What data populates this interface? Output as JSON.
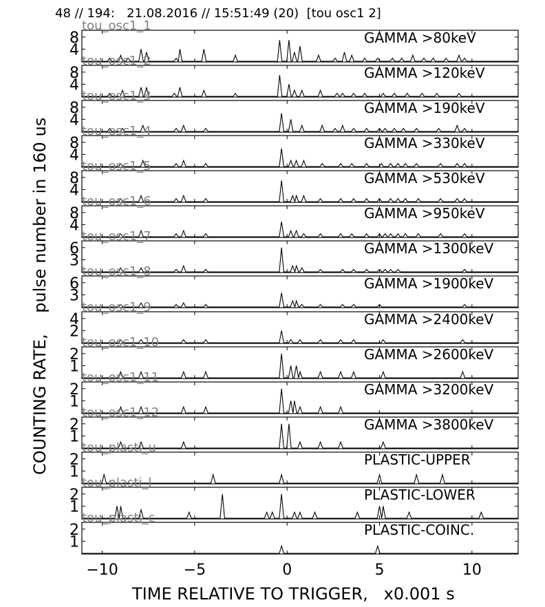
{
  "header": "48 // 194:   21.08.2016 // 15:51:49 (20)  [tou osc1 2]",
  "chart_data": {
    "type": "line",
    "layout": "stacked panels, shared x axis",
    "xlabel": "TIME RELATIVE TO TRIGGER,   x0.001 s",
    "ylabel": "COUNTING RATE,    pulse number in 160 us",
    "xlim": [
      -11.1,
      12.5
    ],
    "xticks": [
      -10,
      -5,
      0,
      5,
      10
    ],
    "xtick_labels": [
      "−10",
      "−5",
      "0",
      "5",
      "10"
    ],
    "grid": false,
    "panels": [
      {
        "channel": "tou_osc1_1",
        "title": "GAMMA >80keV",
        "ylim": [
          0,
          10
        ],
        "yticks": [
          4,
          8
        ],
        "peaks": [
          [
            -9.6,
            1
          ],
          [
            -9.0,
            2
          ],
          [
            -8.6,
            1
          ],
          [
            -7.9,
            4
          ],
          [
            -7.6,
            3
          ],
          [
            -6.0,
            1
          ],
          [
            -5.8,
            4
          ],
          [
            -4.5,
            4
          ],
          [
            -2.8,
            2
          ],
          [
            -0.4,
            7
          ],
          [
            0.1,
            7
          ],
          [
            0.4,
            3
          ],
          [
            0.7,
            5
          ],
          [
            1.7,
            2
          ],
          [
            2.6,
            1
          ],
          [
            3.1,
            3
          ],
          [
            3.5,
            2
          ],
          [
            4.2,
            1
          ],
          [
            4.9,
            1
          ],
          [
            5.7,
            1
          ],
          [
            6.2,
            1
          ],
          [
            6.8,
            2
          ],
          [
            7.4,
            1
          ],
          [
            7.9,
            1
          ],
          [
            8.6,
            1
          ],
          [
            9.3,
            2
          ],
          [
            9.6,
            1
          ]
        ]
      },
      {
        "channel": "tou_osc1_2",
        "title": "GAMMA >120keV",
        "ylim": [
          0,
          10
        ],
        "yticks": [
          4,
          8
        ],
        "peaks": [
          [
            -9.6,
            1
          ],
          [
            -8.9,
            2
          ],
          [
            -7.9,
            3
          ],
          [
            -7.6,
            3
          ],
          [
            -6.1,
            1
          ],
          [
            -5.8,
            3
          ],
          [
            -4.5,
            2
          ],
          [
            -2.8,
            1
          ],
          [
            -0.4,
            7
          ],
          [
            0.1,
            4
          ],
          [
            0.4,
            2
          ],
          [
            0.8,
            2
          ],
          [
            1.8,
            2
          ],
          [
            2.7,
            1
          ],
          [
            3.0,
            1
          ],
          [
            3.6,
            1
          ],
          [
            4.2,
            1
          ],
          [
            5.2,
            1
          ],
          [
            5.8,
            1
          ],
          [
            6.5,
            1
          ],
          [
            7.3,
            1
          ],
          [
            8.1,
            1
          ],
          [
            9.3,
            1
          ]
        ]
      },
      {
        "channel": "tou_osc1_3",
        "title": "GAMMA >190keV",
        "ylim": [
          0,
          10
        ],
        "yticks": [
          4,
          8
        ],
        "peaks": [
          [
            -9.6,
            1
          ],
          [
            -8.9,
            1
          ],
          [
            -7.8,
            2
          ],
          [
            -6.0,
            1
          ],
          [
            -5.6,
            2
          ],
          [
            -4.4,
            1
          ],
          [
            -0.3,
            6
          ],
          [
            0.2,
            4
          ],
          [
            0.8,
            2
          ],
          [
            1.9,
            2
          ],
          [
            2.6,
            1
          ],
          [
            3.0,
            2
          ],
          [
            3.6,
            1
          ],
          [
            4.3,
            1
          ],
          [
            5.0,
            1
          ],
          [
            5.3,
            1
          ],
          [
            5.8,
            1
          ],
          [
            6.3,
            1
          ],
          [
            7.0,
            1
          ],
          [
            8.2,
            1
          ],
          [
            9.2,
            2
          ],
          [
            9.6,
            1
          ]
        ]
      },
      {
        "channel": "tou_osc1_4",
        "title": "GAMMA >330keV",
        "ylim": [
          0,
          10
        ],
        "yticks": [
          4,
          8
        ],
        "peaks": [
          [
            -9.0,
            1
          ],
          [
            -7.8,
            2
          ],
          [
            -6.0,
            1
          ],
          [
            -5.6,
            2
          ],
          [
            -4.4,
            1
          ],
          [
            -0.3,
            6
          ],
          [
            0.2,
            2
          ],
          [
            0.5,
            2
          ],
          [
            0.9,
            2
          ],
          [
            1.9,
            1
          ],
          [
            2.9,
            1
          ],
          [
            3.5,
            1
          ],
          [
            4.3,
            1
          ],
          [
            5.1,
            1
          ],
          [
            5.6,
            1
          ],
          [
            6.0,
            1
          ],
          [
            6.4,
            1
          ],
          [
            7.0,
            1
          ],
          [
            8.3,
            1
          ],
          [
            9.2,
            1
          ],
          [
            9.6,
            1
          ]
        ]
      },
      {
        "channel": "tou_osc1_5",
        "title": "GAMMA >530keV",
        "ylim": [
          0,
          10
        ],
        "yticks": [
          4,
          8
        ],
        "peaks": [
          [
            -9.0,
            1
          ],
          [
            -7.9,
            2
          ],
          [
            -6.0,
            1
          ],
          [
            -5.6,
            2
          ],
          [
            -4.4,
            1
          ],
          [
            -0.3,
            7
          ],
          [
            0.3,
            2
          ],
          [
            0.5,
            2
          ],
          [
            0.9,
            2
          ],
          [
            1.8,
            1
          ],
          [
            2.9,
            1
          ],
          [
            3.6,
            1
          ],
          [
            4.3,
            1
          ],
          [
            5.0,
            1
          ],
          [
            5.6,
            1
          ],
          [
            6.0,
            1
          ],
          [
            6.4,
            1
          ],
          [
            7.1,
            1
          ],
          [
            8.3,
            1
          ],
          [
            9.2,
            1
          ],
          [
            9.6,
            1
          ]
        ]
      },
      {
        "channel": "tou_osc1_6",
        "title": "GAMMA >950keV",
        "ylim": [
          0,
          10
        ],
        "yticks": [
          4,
          8
        ],
        "peaks": [
          [
            -9.0,
            1
          ],
          [
            -7.9,
            2
          ],
          [
            -6.0,
            1
          ],
          [
            -5.6,
            2
          ],
          [
            -4.4,
            1
          ],
          [
            -0.3,
            5
          ],
          [
            0.2,
            2
          ],
          [
            0.5,
            2
          ],
          [
            0.9,
            1
          ],
          [
            1.8,
            1
          ],
          [
            2.9,
            1
          ],
          [
            3.5,
            1
          ],
          [
            4.3,
            1
          ],
          [
            5.0,
            1
          ],
          [
            5.3,
            1
          ],
          [
            5.6,
            1
          ],
          [
            6.0,
            1
          ],
          [
            6.4,
            1
          ],
          [
            7.1,
            1
          ],
          [
            8.3,
            1
          ],
          [
            9.6,
            1
          ]
        ]
      },
      {
        "channel": "tou_osc1_7",
        "title": "GAMMA >1300keV",
        "ylim": [
          0,
          7.5
        ],
        "yticks": [
          3,
          6
        ],
        "peaks": [
          [
            -9.0,
            1
          ],
          [
            -7.9,
            1
          ],
          [
            -6.0,
            0.6
          ],
          [
            -5.6,
            1.5
          ],
          [
            -4.4,
            0.6
          ],
          [
            -0.3,
            6
          ],
          [
            0.3,
            1.5
          ],
          [
            0.5,
            1.5
          ],
          [
            0.8,
            1
          ],
          [
            1.8,
            0.6
          ],
          [
            3.0,
            0.6
          ],
          [
            3.6,
            0.6
          ],
          [
            4.3,
            0.6
          ],
          [
            5.0,
            0.6
          ],
          [
            5.3,
            0.6
          ],
          [
            5.6,
            0.6
          ],
          [
            6.0,
            0.6
          ],
          [
            9.6,
            0.6
          ]
        ]
      },
      {
        "channel": "tou_osc1_8",
        "title": "GAMMA >1900keV",
        "ylim": [
          0,
          7.5
        ],
        "yticks": [
          3,
          6
        ],
        "peaks": [
          [
            -9.0,
            0.6
          ],
          [
            -7.9,
            1
          ],
          [
            -6.0,
            0.6
          ],
          [
            -5.6,
            1
          ],
          [
            -4.4,
            0.6
          ],
          [
            -0.3,
            3.5
          ],
          [
            0.3,
            1.5
          ],
          [
            0.5,
            1.5
          ],
          [
            0.8,
            0.6
          ],
          [
            1.8,
            0.6
          ],
          [
            3.0,
            0.6
          ],
          [
            3.6,
            0.6
          ],
          [
            5.0,
            0.6
          ],
          [
            9.6,
            0.6
          ]
        ]
      },
      {
        "channel": "tou_osc1_9",
        "title": "GAMMA >2400keV",
        "ylim": [
          0,
          5
        ],
        "yticks": [
          2,
          4
        ],
        "peaks": [
          [
            -9.0,
            0.5
          ],
          [
            -7.9,
            0.5
          ],
          [
            -5.6,
            0.5
          ],
          [
            -4.4,
            0.5
          ],
          [
            -0.3,
            2
          ],
          [
            0.2,
            0.5
          ],
          [
            0.7,
            0.5
          ],
          [
            1.8,
            0.5
          ],
          [
            2.9,
            0.5
          ],
          [
            3.6,
            0.5
          ],
          [
            5.2,
            0.5
          ],
          [
            9.5,
            0.5
          ]
        ]
      },
      {
        "channel": "tou_osc1_10",
        "title": "GAMMA >2600keV",
        "ylim": [
          0,
          2.5
        ],
        "yticks": [
          1,
          2
        ],
        "peaks": [
          [
            -9.0,
            0.5
          ],
          [
            -7.9,
            0.5
          ],
          [
            -5.6,
            0.5
          ],
          [
            -4.4,
            0.5
          ],
          [
            -0.3,
            2
          ],
          [
            0.2,
            1
          ],
          [
            0.5,
            1
          ],
          [
            0.7,
            0.5
          ],
          [
            1.8,
            0.5
          ],
          [
            2.9,
            0.5
          ],
          [
            3.6,
            0.5
          ],
          [
            5.2,
            0.5
          ],
          [
            9.5,
            0.5
          ]
        ]
      },
      {
        "channel": "tou_osc1_11",
        "title": "GAMMA >3200keV",
        "ylim": [
          0,
          2.5
        ],
        "yticks": [
          1,
          2
        ],
        "peaks": [
          [
            -9.0,
            0.5
          ],
          [
            -7.9,
            0.5
          ],
          [
            -5.6,
            0.5
          ],
          [
            -4.4,
            0.5
          ],
          [
            -0.3,
            2
          ],
          [
            0.2,
            1
          ],
          [
            0.4,
            1
          ],
          [
            0.7,
            0.5
          ],
          [
            1.8,
            0.5
          ],
          [
            2.9,
            0.5
          ]
        ]
      },
      {
        "channel": "tou_osc1_12",
        "title": "GAMMA >3800keV",
        "ylim": [
          0,
          2.5
        ],
        "yticks": [
          1,
          2
        ],
        "peaks": [
          [
            -9.0,
            0.5
          ],
          [
            -7.9,
            0.5
          ],
          [
            -5.6,
            0.5
          ],
          [
            -0.3,
            2
          ],
          [
            0.1,
            2
          ],
          [
            0.7,
            0.5
          ],
          [
            1.8,
            0.5
          ],
          [
            2.9,
            0.5
          ],
          [
            5.2,
            0.5
          ]
        ]
      },
      {
        "channel": "tou_plasti_u",
        "title": "PLASTIC-UPPER",
        "ylim": [
          0,
          2.5
        ],
        "yticks": [
          1,
          2
        ],
        "peaks": [
          [
            -9.9,
            0.7
          ],
          [
            -4.0,
            0.7
          ],
          [
            -0.3,
            0.7
          ],
          [
            5.0,
            0.7
          ],
          [
            7.0,
            0.7
          ],
          [
            8.4,
            0.7
          ]
        ]
      },
      {
        "channel": "tou_plasti_l",
        "title": "PLASTIC-LOWER",
        "ylim": [
          0,
          2.5
        ],
        "yticks": [
          1,
          2
        ],
        "peaks": [
          [
            -9.2,
            1
          ],
          [
            -9.0,
            1
          ],
          [
            -7.9,
            0.7
          ],
          [
            -5.3,
            0.5
          ],
          [
            -3.5,
            2
          ],
          [
            -1.1,
            0.5
          ],
          [
            -0.8,
            0.5
          ],
          [
            -0.3,
            2
          ],
          [
            0.4,
            0.5
          ],
          [
            0.7,
            0.5
          ],
          [
            1.5,
            0.5
          ],
          [
            3.8,
            0.5
          ],
          [
            5.0,
            1
          ],
          [
            5.2,
            1
          ],
          [
            6.6,
            0.5
          ],
          [
            10.5,
            0.5
          ]
        ]
      },
      {
        "channel": "tou_plasti_c",
        "title": "PLASTIC-COINC.",
        "ylim": [
          0,
          2.5
        ],
        "yticks": [
          1,
          2
        ],
        "peaks": [
          [
            -0.3,
            0.6
          ],
          [
            4.9,
            0.6
          ]
        ]
      }
    ]
  }
}
